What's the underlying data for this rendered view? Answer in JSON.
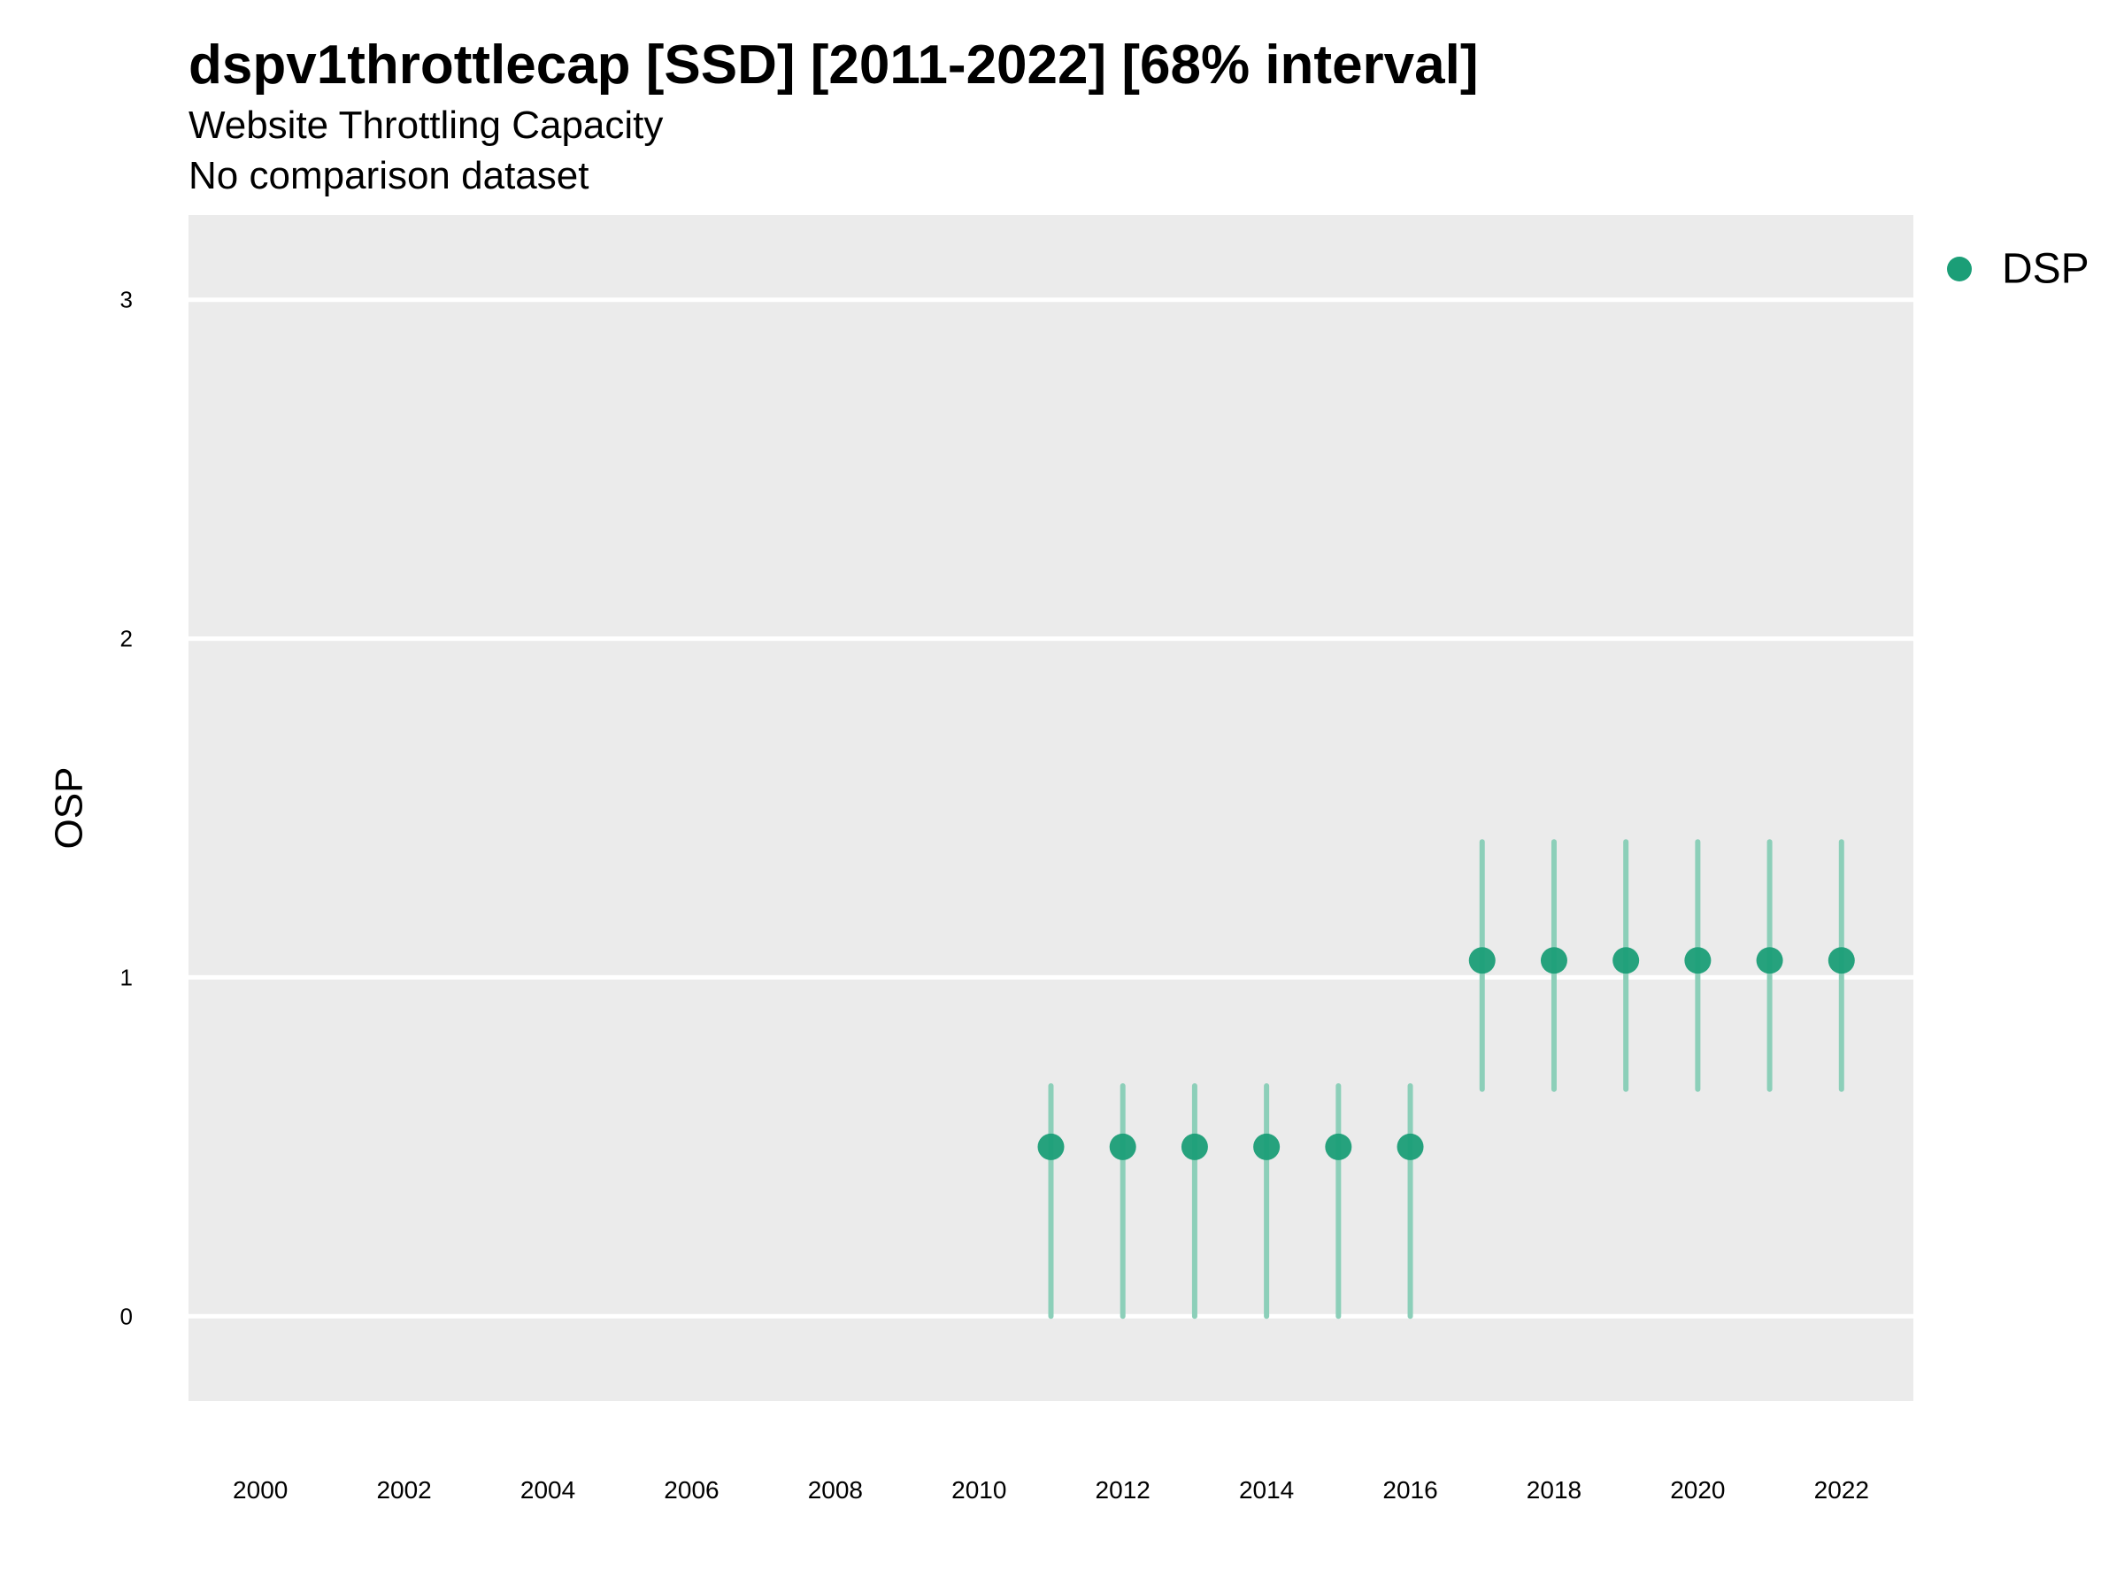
{
  "title": "dspv1throttlecap [SSD] [2011-2022] [68% interval]",
  "subtitle": "Website Throttling Capacity",
  "caption": "No comparison dataset",
  "chart_data": {
    "type": "scatter",
    "title": "dspv1throttlecap [SSD] [2011-2022] [68% interval]",
    "subtitle": "Website Throttling Capacity",
    "xlabel": "",
    "ylabel": "OSP",
    "xlim": [
      1999,
      2023
    ],
    "ylim": [
      -0.25,
      3.25
    ],
    "x_ticks": [
      2000,
      2002,
      2004,
      2006,
      2008,
      2010,
      2012,
      2014,
      2016,
      2018,
      2020,
      2022
    ],
    "y_ticks": [
      0,
      1,
      2,
      3
    ],
    "grid": "horizontal major",
    "legend_position": "right",
    "colors": {
      "panel": "#ebebeb",
      "gridline": "#ffffff",
      "point": "#1b9e77",
      "interval": "#8ccfb9"
    },
    "series": [
      {
        "name": "DSP",
        "x": [
          2011,
          2012,
          2013,
          2014,
          2015,
          2016,
          2017,
          2018,
          2019,
          2020,
          2021,
          2022
        ],
        "y": [
          0.5,
          0.5,
          0.5,
          0.5,
          0.5,
          0.5,
          1.05,
          1.05,
          1.05,
          1.05,
          1.05,
          1.05
        ],
        "lower": [
          0,
          0,
          0,
          0,
          0,
          0,
          0.67,
          0.67,
          0.67,
          0.67,
          0.67,
          0.67
        ],
        "upper": [
          0.68,
          0.68,
          0.68,
          0.68,
          0.68,
          0.68,
          1.4,
          1.4,
          1.4,
          1.4,
          1.4,
          1.4
        ]
      }
    ]
  }
}
